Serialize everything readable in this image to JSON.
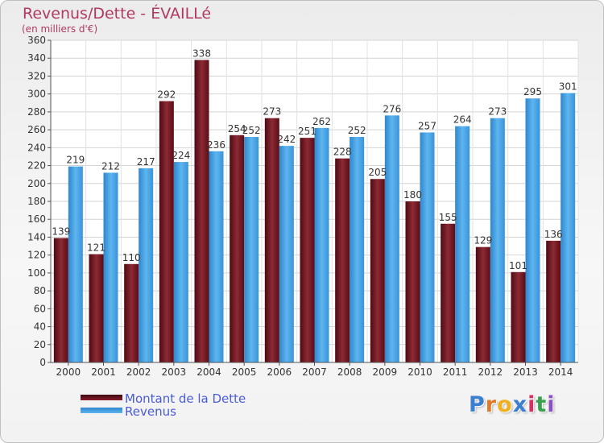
{
  "header": {
    "title": "Revenus/Dette - ÉVAILLé",
    "subtitle": "(en milliers d'€)"
  },
  "legend": {
    "debt_label": "Montant de la Dette",
    "revenue_label": "Revenus"
  },
  "logo": {
    "text": "Proxiti"
  },
  "colors": {
    "debt": "#8a1c2a",
    "revenue": "#3e9ee0",
    "title": "#b03a60",
    "legend_text": "#4a5bd6"
  },
  "chart_data": {
    "type": "bar",
    "title": "Revenus/Dette - ÉVAILLé",
    "subtitle": "(en milliers d'€)",
    "xlabel": "",
    "ylabel": "",
    "ylim": [
      0,
      360
    ],
    "ytick_step": 20,
    "grid": true,
    "legend_position": "bottom-left",
    "categories": [
      "2000",
      "2001",
      "2002",
      "2003",
      "2004",
      "2005",
      "2006",
      "2007",
      "2008",
      "2009",
      "2010",
      "2011",
      "2012",
      "2013",
      "2014"
    ],
    "series": [
      {
        "name": "Montant de la Dette",
        "values": [
          139,
          121,
          110,
          292,
          338,
          254,
          273,
          251,
          228,
          205,
          180,
          155,
          129,
          101,
          136
        ]
      },
      {
        "name": "Revenus",
        "values": [
          219,
          212,
          217,
          224,
          236,
          252,
          242,
          262,
          252,
          276,
          257,
          264,
          273,
          295,
          301
        ]
      }
    ]
  }
}
